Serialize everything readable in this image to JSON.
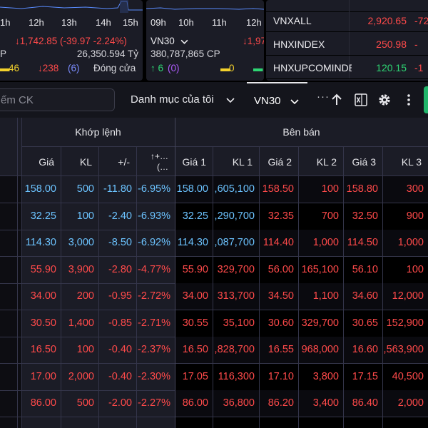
{
  "indices": {
    "card1": {
      "hours": [
        "1h",
        "12h",
        "13h",
        "14h",
        "15h"
      ],
      "value_line": "↓1,742.85 (-39.97 -2.24%)",
      "volume_prefix": "P",
      "volume_value": "26,350.594 Tỷ",
      "up_count": "46",
      "down_count": "↓238",
      "down_sub": "(6)",
      "status": "Đóng cửa"
    },
    "card2": {
      "hours": [
        "09h",
        "10h",
        "11h",
        "12h"
      ],
      "name": "VN30",
      "value_partial": "↓1,97",
      "volume": "380,787,865 CP",
      "up_count": "↑ 6",
      "up_sub": "(0)",
      "ref_count": "0"
    },
    "card3": {
      "rows": [
        {
          "name": "VNXALL",
          "value": "2,920.65",
          "change": "-72"
        },
        {
          "name": "HNXINDEX",
          "value": "250.98",
          "change": "-"
        },
        {
          "name": "HNXUPCOMINDE",
          "value": "120.15",
          "change": "-1"
        }
      ]
    }
  },
  "toolbar": {
    "search_placeholder": "ếm CK",
    "watchlist_label": "Danh mục của tôi",
    "active_tab": "VN30",
    "more": "···"
  },
  "table": {
    "groups": {
      "matched": "Khớp lệnh",
      "sell": "Bên bán"
    },
    "headers": {
      "price": "Giá",
      "volume": "KL",
      "change": "+/-",
      "pct": "↑+… (…",
      "ask1": "Giá 1",
      "askvol1": "KL 1",
      "ask2": "Giá 2",
      "askvol2": "KL 2",
      "ask3": "Giá 3",
      "askvol3": "KL 3"
    },
    "rows": [
      {
        "price": "158.00",
        "vol": "500",
        "chg": "-11.80",
        "pct": "-6.95%",
        "a1": "158.00",
        "v1": ",605,100",
        "a2": "158.50",
        "v2": "100",
        "a3": "158.80",
        "v3": "300",
        "tone": "blue"
      },
      {
        "price": "32.25",
        "vol": "100",
        "chg": "-2.40",
        "pct": "-6.93%",
        "a1": "32.25",
        "v1": ",290,700",
        "a2": "32.35",
        "v2": "700",
        "a3": "32.50",
        "v3": "900",
        "tone": "blue"
      },
      {
        "price": "114.30",
        "vol": "3,000",
        "chg": "-8.50",
        "pct": "-6.92%",
        "a1": "114.30",
        "v1": ",087,700",
        "a2": "114.40",
        "v2": "1,000",
        "a3": "114.50",
        "v3": "1,000",
        "tone": "blue"
      },
      {
        "price": "55.90",
        "vol": "3,900",
        "chg": "-2.80",
        "pct": "-4.77%",
        "a1": "55.90",
        "v1": "329,700",
        "a2": "56.00",
        "v2": "165,100",
        "a3": "56.10",
        "v3": "100",
        "tone": "red"
      },
      {
        "price": "34.00",
        "vol": "200",
        "chg": "-0.95",
        "pct": "-2.72%",
        "a1": "34.00",
        "v1": "313,700",
        "a2": "34.50",
        "v2": "1,100",
        "a3": "34.60",
        "v3": "12,000",
        "tone": "red"
      },
      {
        "price": "30.50",
        "vol": "1,400",
        "chg": "-0.85",
        "pct": "-2.71%",
        "a1": "30.55",
        "v1": "35,100",
        "a2": "30.60",
        "v2": "329,700",
        "a3": "30.65",
        "v3": "152,900",
        "tone": "red"
      },
      {
        "price": "16.50",
        "vol": "100",
        "chg": "-0.40",
        "pct": "-2.37%",
        "a1": "16.50",
        "v1": ",828,700",
        "a2": "16.55",
        "v2": "968,000",
        "a3": "16.60",
        "v3": ",563,900",
        "tone": "red"
      },
      {
        "price": "17.00",
        "vol": "2,000",
        "chg": "-0.40",
        "pct": "-2.30%",
        "a1": "17.05",
        "v1": "116,300",
        "a2": "17.10",
        "v2": "3,800",
        "a3": "17.15",
        "v3": "40,500",
        "tone": "red"
      },
      {
        "price": "86.00",
        "vol": "500",
        "chg": "-2.00",
        "pct": "-2.27%",
        "a1": "86.00",
        "v1": "36,800",
        "a2": "86.20",
        "v2": "3,400",
        "a3": "86.40",
        "v3": "2,000",
        "tone": "red"
      }
    ]
  },
  "colors": {
    "up": "#2ed573",
    "down": "#ff4a4a",
    "floor": "#6cc3ff",
    "ref": "#f3d12c",
    "ceiling": "#b05cff",
    "accent": "#21b56a"
  },
  "icons": {
    "watchlist_chevron": "chevron-down-icon",
    "tab_chevron": "chevron-down-icon",
    "sort": "arrow-up-icon",
    "excel": "excel-icon",
    "settings": "gear-icon",
    "menu": "more-vertical-icon"
  }
}
